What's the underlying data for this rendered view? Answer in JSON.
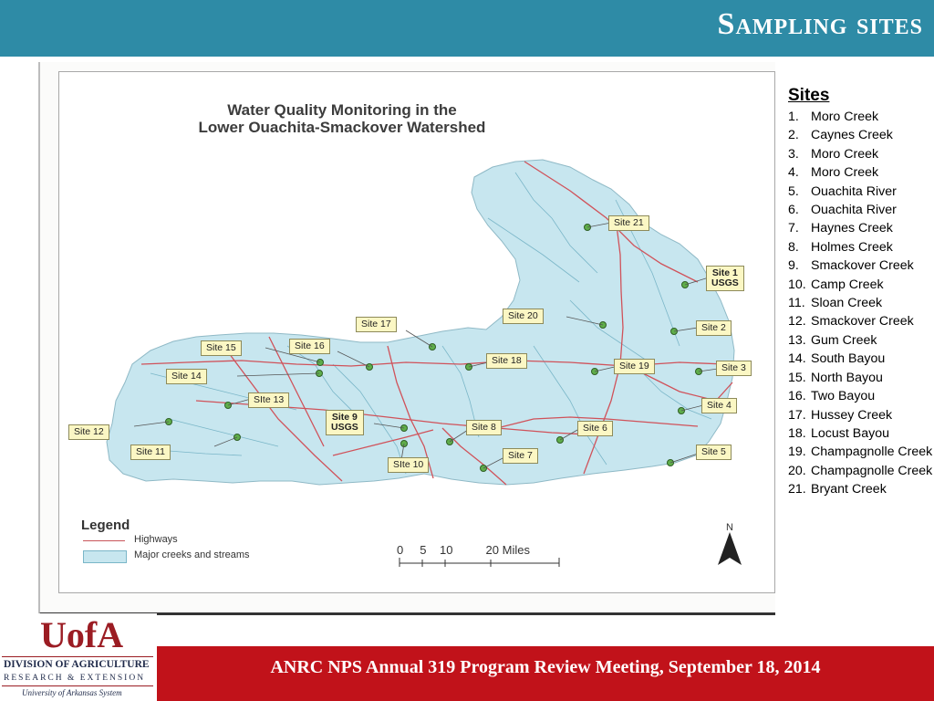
{
  "slide": {
    "title": "Sampling sites",
    "footer": "ANRC NPS Annual 319 Program Review Meeting, September 18, 2014"
  },
  "logo": {
    "mark": "UofA",
    "line1": "DIVISION OF AGRICULTURE",
    "line2": "RESEARCH & EXTENSION",
    "line3": "University of Arkansas System"
  },
  "map": {
    "title_line1": "Water Quality Monitoring in the",
    "title_line2": "Lower Ouachita-Smackover Watershed",
    "labels": {
      "site1": "Site 1",
      "site1_usgs": "USGS",
      "site2": "Site 2",
      "site3": "Site 3",
      "site4": "Site 4",
      "site5": "Site 5",
      "site6": "Site 6",
      "site7": "Site 7",
      "site8": "Site 8",
      "site9": "Site 9",
      "site9_usgs": "USGS",
      "site10": "SIte 10",
      "site11": "Site 11",
      "site12": "Site 12",
      "site13": "SIte 13",
      "site14": "Site 14",
      "site15": "Site 15",
      "site16": "Site 16",
      "site17": "Site 17",
      "site18": "Site 18",
      "site19": "Site 19",
      "site20": "Site 20",
      "site21": "Site 21"
    },
    "legend": {
      "title": "Legend",
      "highways": "Highways",
      "creeks": "Major creeks and streams"
    },
    "scale": "0     5    10          20 Miles",
    "north": "N",
    "colors": {
      "watershed": "#c7e6ef",
      "highways": "#d0525a",
      "streams": "#7ab6c8",
      "site_marker": "#5fae4a"
    }
  },
  "sites": {
    "heading": "Sites",
    "items": [
      {
        "num": "1.",
        "name": "Moro Creek"
      },
      {
        "num": "2.",
        "name": "Caynes Creek"
      },
      {
        "num": "3.",
        "name": "Moro Creek"
      },
      {
        "num": "4.",
        "name": "Moro Creek"
      },
      {
        "num": "5.",
        "name": "Ouachita River"
      },
      {
        "num": "6.",
        "name": "Ouachita River"
      },
      {
        "num": "7.",
        "name": "Haynes Creek"
      },
      {
        "num": "8.",
        "name": "Holmes Creek"
      },
      {
        "num": "9.",
        "name": "Smackover Creek"
      },
      {
        "num": "10.",
        "name": "Camp Creek"
      },
      {
        "num": "11.",
        "name": "Sloan Creek"
      },
      {
        "num": "12.",
        "name": "Smackover Creek"
      },
      {
        "num": "13.",
        "name": "Gum Creek"
      },
      {
        "num": "14.",
        "name": "South Bayou"
      },
      {
        "num": "15.",
        "name": "North Bayou"
      },
      {
        "num": "16.",
        "name": "Two Bayou"
      },
      {
        "num": "17.",
        "name": "Hussey Creek"
      },
      {
        "num": "18.",
        "name": "Locust Bayou"
      },
      {
        "num": "19.",
        "name": "Champagnolle Creek"
      },
      {
        "num": "20.",
        "name": "Champagnolle Creek"
      },
      {
        "num": "21.",
        "name": "Bryant Creek"
      }
    ]
  }
}
